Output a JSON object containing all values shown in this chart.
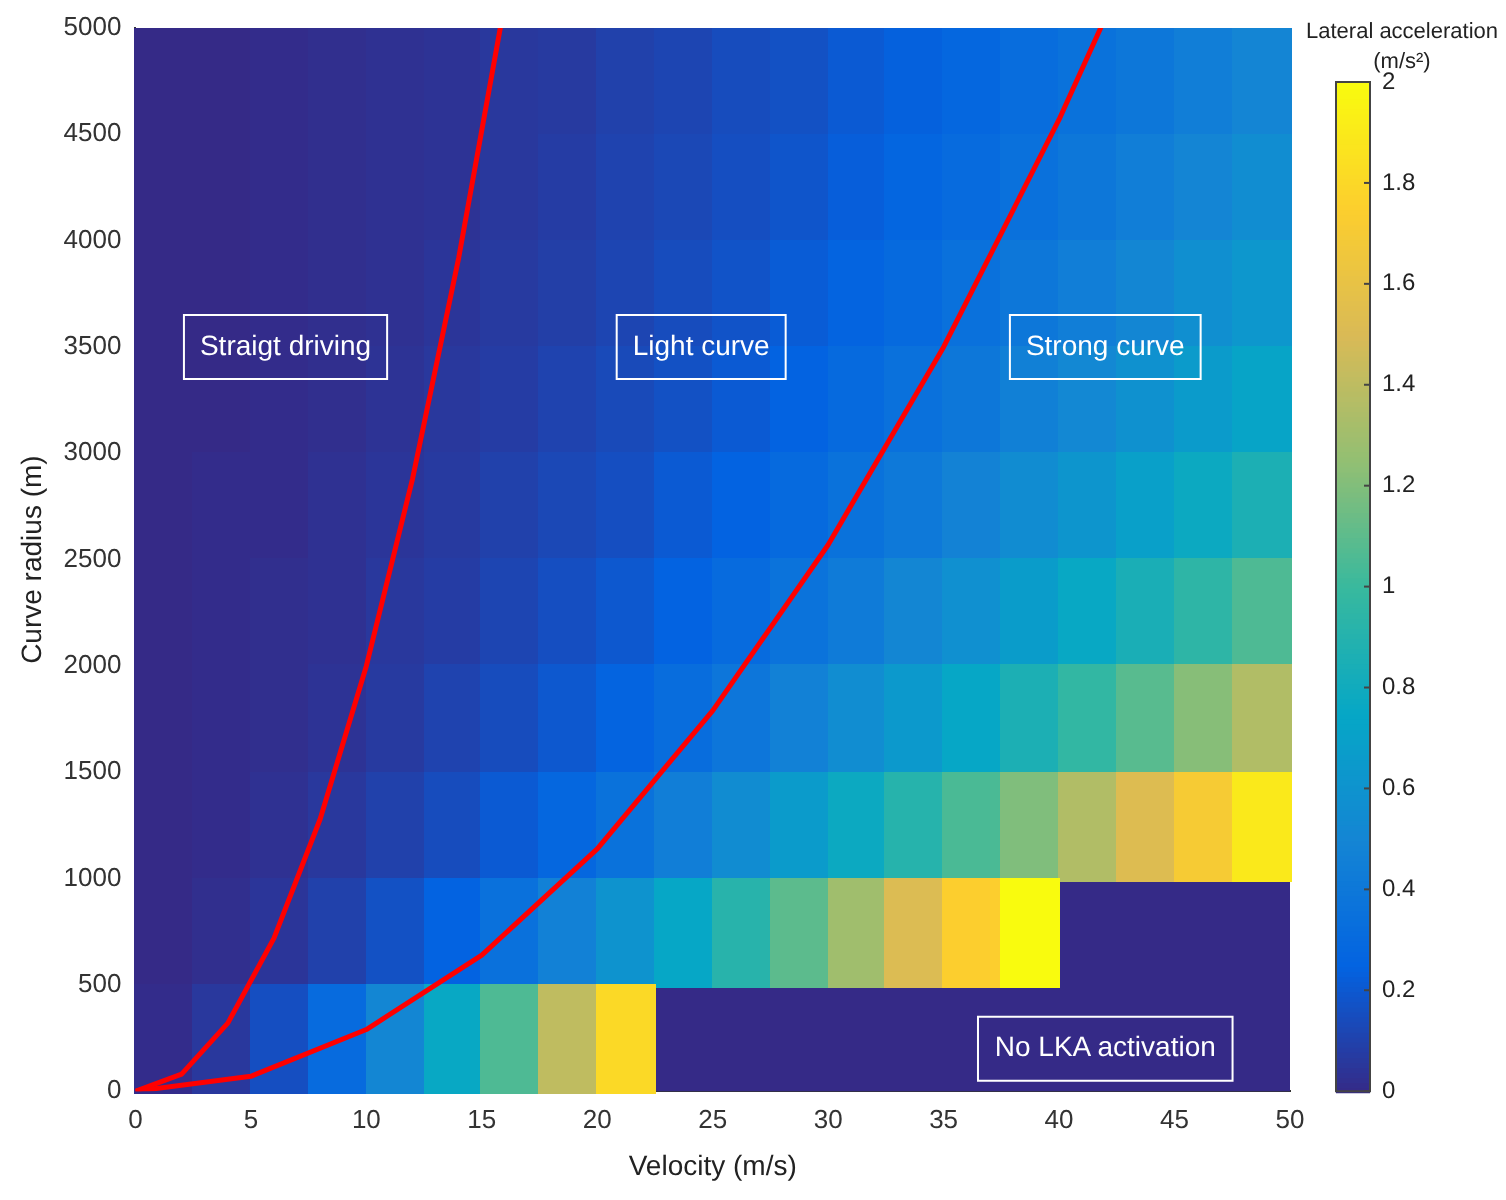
{
  "chart_data": {
    "type": "heatmap",
    "xlabel": "Velocity (m/s)",
    "ylabel": "Curve radius (m)",
    "clabel": "Lateral acceleration (m/s²)",
    "x": [
      1.25,
      3.75,
      6.25,
      8.75,
      11.25,
      13.75,
      16.25,
      18.75,
      21.25,
      23.75,
      26.25,
      28.75,
      31.25,
      33.75,
      36.25,
      38.75,
      41.25,
      43.75,
      46.25,
      48.75
    ],
    "xlim": [
      0,
      50
    ],
    "xticks": [
      0,
      5,
      10,
      15,
      20,
      25,
      30,
      35,
      40,
      45,
      50
    ],
    "ylim": [
      0,
      5000
    ],
    "yticks": [
      0,
      500,
      1000,
      1500,
      2000,
      2500,
      3000,
      3500,
      4000,
      4500,
      5000
    ],
    "clim": [
      0,
      2
    ],
    "cticks": [
      0,
      0.2,
      0.4,
      0.6,
      0.8,
      1,
      1.2,
      1.4,
      1.6,
      1.8,
      2
    ],
    "cells": [
      [
        0.0,
        0.0,
        0.01,
        0.02,
        0.03,
        0.04,
        0.06,
        0.07,
        0.1,
        0.12,
        0.15,
        0.17,
        0.21,
        0.24,
        0.28,
        0.32,
        0.36,
        0.4,
        0.45,
        0.5
      ],
      [
        0.0,
        0.0,
        0.01,
        0.02,
        0.03,
        0.04,
        0.06,
        0.08,
        0.11,
        0.13,
        0.16,
        0.19,
        0.23,
        0.27,
        0.31,
        0.35,
        0.4,
        0.45,
        0.5,
        0.56
      ],
      [
        0.0,
        0.0,
        0.01,
        0.02,
        0.03,
        0.05,
        0.07,
        0.09,
        0.12,
        0.15,
        0.18,
        0.22,
        0.26,
        0.3,
        0.35,
        0.4,
        0.45,
        0.51,
        0.57,
        0.63
      ],
      [
        0.0,
        0.0,
        0.01,
        0.02,
        0.04,
        0.06,
        0.08,
        0.11,
        0.14,
        0.17,
        0.21,
        0.25,
        0.3,
        0.35,
        0.4,
        0.46,
        0.52,
        0.59,
        0.66,
        0.73
      ],
      [
        0.0,
        0.01,
        0.01,
        0.03,
        0.05,
        0.07,
        0.1,
        0.13,
        0.16,
        0.21,
        0.25,
        0.3,
        0.36,
        0.41,
        0.48,
        0.55,
        0.62,
        0.7,
        0.78,
        0.86
      ],
      [
        0.0,
        0.01,
        0.02,
        0.03,
        0.06,
        0.08,
        0.12,
        0.16,
        0.2,
        0.25,
        0.31,
        0.37,
        0.43,
        0.51,
        0.58,
        0.67,
        0.76,
        0.85,
        0.95,
        1.06
      ],
      [
        0.0,
        0.01,
        0.02,
        0.04,
        0.07,
        0.11,
        0.15,
        0.2,
        0.26,
        0.32,
        0.39,
        0.47,
        0.56,
        0.65,
        0.75,
        0.86,
        0.97,
        1.09,
        1.22,
        1.36
      ],
      [
        0.0,
        0.01,
        0.03,
        0.06,
        0.1,
        0.15,
        0.21,
        0.28,
        0.36,
        0.45,
        0.55,
        0.66,
        0.78,
        0.91,
        1.05,
        1.2,
        1.36,
        1.53,
        1.71,
        1.9
      ],
      [
        0.0,
        0.02,
        0.05,
        0.1,
        0.17,
        0.25,
        0.35,
        0.47,
        0.6,
        0.75,
        0.92,
        1.1,
        1.3,
        1.52,
        1.75,
        2.0,
        null,
        null,
        null,
        null
      ],
      [
        0.01,
        0.06,
        0.16,
        0.31,
        0.51,
        0.76,
        1.06,
        1.41,
        1.81,
        null,
        null,
        null,
        null,
        null,
        null,
        null,
        null,
        null,
        null,
        null
      ]
    ],
    "series": [
      {
        "type": "line",
        "color": "#ff0000",
        "x": [
          0,
          2,
          4,
          6,
          8,
          10,
          12,
          14,
          15.8
        ],
        "values": [
          0,
          80,
          320,
          720,
          1280,
          2000,
          2880,
          3920,
          5000
        ]
      },
      {
        "type": "line",
        "color": "#ff0000",
        "x": [
          0,
          5,
          10,
          15,
          20,
          25,
          30,
          35,
          40,
          41.8
        ],
        "values": [
          0,
          70,
          290,
          640,
          1140,
          1790,
          2570,
          3500,
          4570,
          5000
        ]
      }
    ],
    "annotations": [
      "Straigt driving",
      "Light curve",
      "Strong curve",
      "No LKA activation"
    ],
    "legend": false,
    "grid": false
  }
}
